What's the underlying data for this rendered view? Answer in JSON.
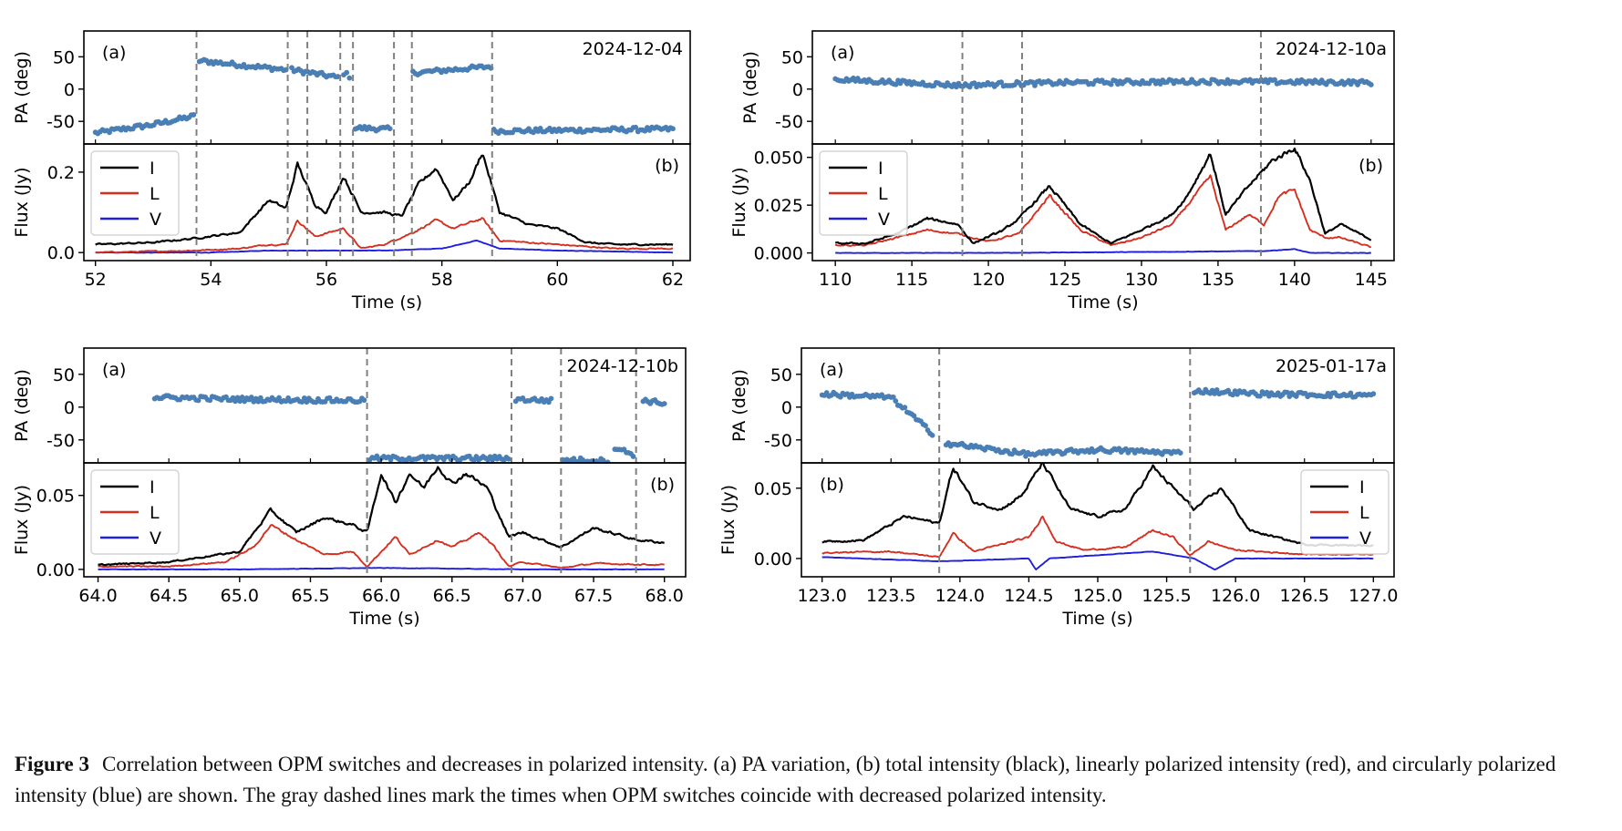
{
  "figure": {
    "caption_label": "Figure 3",
    "caption_text": "Correlation between OPM switches and decreases in polarized intensity. (a) PA variation, (b) total intensity (black), linearly polarized intensity (red), and circularly polarized intensity (blue) are shown. The gray dashed lines mark the times when OPM switches coincide with decreased polarized intensity."
  },
  "colors": {
    "I": "#000000",
    "L": "#d62e1f",
    "V": "#1f1fe0",
    "PA": "#4a7fb5",
    "switch": "#808080"
  },
  "chart_data": [
    {
      "type": "line",
      "title": "2024-12-04",
      "legend_position": "top-left",
      "pa_panel": {
        "label": "(a)",
        "ylabel": "PA (deg)",
        "ylim": [
          -85,
          90
        ],
        "yticks": [
          50,
          0,
          -50
        ],
        "segments": [
          {
            "x": [
              52.0,
              53.0,
              53.7
            ],
            "y": [
              -68,
              -55,
              -42
            ]
          },
          {
            "x": [
              53.8,
              55.3
            ],
            "y": [
              44,
              30
            ]
          },
          {
            "x": [
              55.4,
              56.2
            ],
            "y": [
              30,
              18
            ]
          },
          {
            "x": [
              56.3,
              56.4
            ],
            "y": [
              25,
              20
            ]
          },
          {
            "x": [
              56.5,
              57.1
            ],
            "y": [
              -60,
              -62
            ]
          },
          {
            "x": [
              57.5,
              58.85
            ],
            "y": [
              25,
              35
            ]
          },
          {
            "x": [
              58.9,
              62.0
            ],
            "y": [
              -65,
              -62
            ]
          }
        ]
      },
      "flux_panel": {
        "label": "(b)",
        "ylabel": "Flux (Jy)",
        "ylim": [
          -0.02,
          0.27
        ],
        "yticks": [
          0.0,
          0.2
        ],
        "ytick_labels": [
          "0.0",
          "0.2"
        ]
      },
      "xlabel": "Time (s)",
      "xlim": [
        51.8,
        62.3
      ],
      "xticks": [
        52,
        54,
        56,
        58,
        60,
        62
      ],
      "xtick_labels": [
        "52",
        "54",
        "56",
        "58",
        "60",
        "62"
      ],
      "switches": [
        53.75,
        55.33,
        55.67,
        56.24,
        56.46,
        57.17,
        57.48,
        58.87
      ],
      "series": [
        {
          "name": "I",
          "x": [
            52,
            53,
            53.7,
            54.5,
            55.0,
            55.3,
            55.5,
            55.8,
            56.0,
            56.3,
            56.6,
            57.0,
            57.3,
            57.6,
            57.9,
            58.2,
            58.5,
            58.7,
            59.0,
            59.5,
            60.0,
            60.5,
            61.0,
            62.0
          ],
          "values": [
            0.02,
            0.025,
            0.035,
            0.05,
            0.13,
            0.11,
            0.22,
            0.12,
            0.1,
            0.19,
            0.1,
            0.1,
            0.09,
            0.17,
            0.21,
            0.13,
            0.18,
            0.25,
            0.1,
            0.07,
            0.06,
            0.025,
            0.02,
            0.02
          ]
        },
        {
          "name": "L",
          "x": [
            52,
            53.7,
            54.5,
            55.0,
            55.3,
            55.5,
            55.8,
            56.3,
            56.6,
            57.0,
            57.5,
            57.9,
            58.2,
            58.7,
            59.0,
            60.0,
            61.0,
            62.0
          ],
          "values": [
            0.0,
            0.005,
            0.01,
            0.02,
            0.02,
            0.08,
            0.04,
            0.06,
            0.01,
            0.02,
            0.05,
            0.08,
            0.06,
            0.085,
            0.03,
            0.02,
            0.01,
            0.01
          ]
        },
        {
          "name": "V",
          "x": [
            52,
            54,
            55,
            56,
            57,
            58,
            58.6,
            59,
            60,
            62
          ],
          "values": [
            0.0,
            0.0,
            0.005,
            0.005,
            0.005,
            0.01,
            0.03,
            0.01,
            0.005,
            0.0
          ]
        }
      ]
    },
    {
      "type": "line",
      "title": "2024-12-10a",
      "legend_position": "top-left",
      "pa_panel": {
        "label": "(a)",
        "ylabel": "PA (deg)",
        "ylim": [
          -85,
          90
        ],
        "yticks": [
          50,
          0,
          -50
        ],
        "segments": [
          {
            "x": [
              110.0,
              118.0,
              125.0,
              135.0,
              145.0
            ],
            "y": [
              15,
              6,
              10,
              12,
              10
            ]
          }
        ]
      },
      "flux_panel": {
        "label": "(b)",
        "ylabel": "Flux (Jy)",
        "ylim": [
          -0.004,
          0.057
        ],
        "yticks": [
          0.0,
          0.025,
          0.05
        ],
        "ytick_labels": [
          "0.000",
          "0.025",
          "0.050"
        ]
      },
      "xlabel": "Time (s)",
      "xlim": [
        108.5,
        146.5
      ],
      "xticks": [
        110,
        115,
        120,
        125,
        130,
        135,
        140,
        145
      ],
      "xtick_labels": [
        "110",
        "115",
        "120",
        "125",
        "130",
        "135",
        "140",
        "145"
      ],
      "switches": [
        118.3,
        122.2,
        137.8
      ],
      "series": [
        {
          "name": "I",
          "x": [
            110,
            112,
            114,
            116,
            118,
            119,
            121,
            122,
            124,
            126,
            128,
            130,
            132,
            133,
            134.5,
            135.5,
            137,
            138.5,
            140,
            141,
            142,
            143,
            145
          ],
          "values": [
            0.005,
            0.005,
            0.01,
            0.018,
            0.015,
            0.005,
            0.012,
            0.018,
            0.035,
            0.015,
            0.005,
            0.012,
            0.02,
            0.03,
            0.052,
            0.02,
            0.035,
            0.048,
            0.055,
            0.038,
            0.01,
            0.015,
            0.007
          ]
        },
        {
          "name": "L",
          "x": [
            110,
            112,
            114,
            116,
            118,
            120,
            122,
            124,
            126,
            128,
            130,
            132,
            134.5,
            135.5,
            137,
            138,
            139,
            140,
            141,
            142,
            143,
            145
          ],
          "values": [
            0.004,
            0.004,
            0.008,
            0.012,
            0.01,
            0.006,
            0.01,
            0.03,
            0.012,
            0.004,
            0.008,
            0.015,
            0.04,
            0.012,
            0.02,
            0.015,
            0.03,
            0.033,
            0.012,
            0.008,
            0.008,
            0.003
          ]
        },
        {
          "name": "V",
          "x": [
            110,
            120,
            130,
            138,
            140,
            141,
            145
          ],
          "values": [
            0.0,
            0.0,
            0.0005,
            0.001,
            0.002,
            0.0,
            0.0
          ]
        }
      ]
    },
    {
      "type": "line",
      "title": "2024-12-10b",
      "legend_position": "top-left",
      "pa_panel": {
        "label": "(a)",
        "ylabel": "PA (deg)",
        "ylim": [
          -85,
          90
        ],
        "yticks": [
          50,
          0,
          -50
        ],
        "segments": [
          {
            "x": [
              64.4,
              65.0,
              65.88
            ],
            "y": [
              15,
              12,
              10
            ]
          },
          {
            "x": [
              65.92,
              66.9
            ],
            "y": [
              -78,
              -78
            ]
          },
          {
            "x": [
              66.95,
              67.2
            ],
            "y": [
              12,
              10
            ]
          },
          {
            "x": [
              67.28,
              67.6
            ],
            "y": [
              -80,
              -82
            ]
          },
          {
            "x": [
              67.65,
              67.78
            ],
            "y": [
              -62,
              -72
            ]
          },
          {
            "x": [
              67.85,
              68.0
            ],
            "y": [
              10,
              6
            ]
          }
        ]
      },
      "flux_panel": {
        "label": "(b)",
        "ylabel": "Flux (Jy)",
        "ylim": [
          -0.005,
          0.072
        ],
        "yticks": [
          0.0,
          0.05
        ],
        "ytick_labels": [
          "0.00",
          "0.05"
        ]
      },
      "xlabel": "Time (s)",
      "xlim": [
        63.9,
        68.15
      ],
      "xticks": [
        64.0,
        64.5,
        65.0,
        65.5,
        66.0,
        66.5,
        67.0,
        67.5,
        68.0
      ],
      "xtick_labels": [
        "64.0",
        "64.5",
        "65.0",
        "65.5",
        "66.0",
        "66.5",
        "67.0",
        "67.5",
        "68.0"
      ],
      "switches": [
        65.9,
        66.92,
        67.27,
        67.8
      ],
      "series": [
        {
          "name": "I",
          "x": [
            64.0,
            64.5,
            65.0,
            65.22,
            65.4,
            65.6,
            65.8,
            65.9,
            66.0,
            66.1,
            66.2,
            66.3,
            66.4,
            66.5,
            66.6,
            66.75,
            66.9,
            67.0,
            67.27,
            67.5,
            67.8,
            68.0
          ],
          "values": [
            0.003,
            0.005,
            0.012,
            0.04,
            0.025,
            0.035,
            0.03,
            0.025,
            0.065,
            0.045,
            0.065,
            0.055,
            0.07,
            0.058,
            0.065,
            0.055,
            0.022,
            0.025,
            0.015,
            0.028,
            0.02,
            0.018
          ]
        },
        {
          "name": "L",
          "x": [
            64.0,
            64.5,
            64.9,
            65.1,
            65.22,
            65.4,
            65.6,
            65.8,
            65.9,
            66.1,
            66.2,
            66.4,
            66.5,
            66.7,
            66.8,
            66.9,
            67.0,
            67.27,
            67.5,
            68.0
          ],
          "values": [
            0.002,
            0.002,
            0.005,
            0.015,
            0.03,
            0.02,
            0.01,
            0.012,
            0.002,
            0.022,
            0.01,
            0.02,
            0.015,
            0.025,
            0.015,
            0.002,
            0.005,
            0.001,
            0.004,
            0.003
          ]
        },
        {
          "name": "V",
          "x": [
            64.0,
            65.0,
            66.0,
            67.0,
            68.0
          ],
          "values": [
            0.0,
            0.0,
            0.001,
            0.0,
            0.0
          ]
        }
      ]
    },
    {
      "type": "line",
      "title": "2025-01-17a",
      "legend_position": "top-right",
      "pa_panel": {
        "label": "(a)",
        "ylabel": "PA (deg)",
        "ylim": [
          -85,
          90
        ],
        "yticks": [
          50,
          0,
          -50
        ],
        "segments": [
          {
            "x": [
              123.0,
              123.5,
              123.8
            ],
            "y": [
              20,
              15,
              -40
            ]
          },
          {
            "x": [
              123.9,
              124.5,
              125.0,
              125.6
            ],
            "y": [
              -55,
              -72,
              -65,
              -70
            ]
          },
          {
            "x": [
              125.7,
              126.2,
              127.0
            ],
            "y": [
              25,
              20,
              18
            ]
          }
        ]
      },
      "flux_panel": {
        "label": "(b)",
        "ylabel": "Flux (Jy)",
        "ylim": [
          -0.013,
          0.068
        ],
        "yticks": [
          0.0,
          0.05
        ],
        "ytick_labels": [
          "0.00",
          "0.05"
        ]
      },
      "xlabel": "Time (s)",
      "xlim": [
        122.85,
        127.15
      ],
      "xticks": [
        123.0,
        123.5,
        124.0,
        124.5,
        125.0,
        125.5,
        126.0,
        126.5,
        127.0
      ],
      "xtick_labels": [
        "123.0",
        "123.5",
        "124.0",
        "124.5",
        "125.0",
        "125.5",
        "126.0",
        "126.5",
        "127.0"
      ],
      "switches": [
        123.85,
        125.67
      ],
      "series": [
        {
          "name": "I",
          "x": [
            123.0,
            123.3,
            123.6,
            123.85,
            123.95,
            124.1,
            124.3,
            124.45,
            124.6,
            124.8,
            125.0,
            125.2,
            125.4,
            125.6,
            125.7,
            125.9,
            126.1,
            126.5,
            127.0
          ],
          "values": [
            0.012,
            0.013,
            0.03,
            0.025,
            0.065,
            0.04,
            0.035,
            0.045,
            0.068,
            0.035,
            0.03,
            0.035,
            0.065,
            0.045,
            0.035,
            0.05,
            0.02,
            0.01,
            0.009
          ]
        },
        {
          "name": "L",
          "x": [
            123.0,
            123.5,
            123.85,
            123.95,
            124.1,
            124.3,
            124.5,
            124.6,
            124.7,
            124.9,
            125.2,
            125.4,
            125.55,
            125.67,
            125.8,
            126.0,
            126.5,
            127.0
          ],
          "values": [
            0.004,
            0.005,
            0.001,
            0.018,
            0.005,
            0.01,
            0.015,
            0.03,
            0.012,
            0.006,
            0.008,
            0.02,
            0.015,
            0.002,
            0.012,
            0.006,
            0.003,
            0.003
          ]
        },
        {
          "name": "V",
          "x": [
            123.0,
            123.85,
            124.5,
            124.55,
            124.65,
            125.4,
            125.7,
            125.85,
            126.0,
            127.0
          ],
          "values": [
            0.001,
            -0.002,
            0.0,
            -0.008,
            0.0,
            0.005,
            0.0,
            -0.008,
            0.0,
            0.0
          ]
        }
      ]
    }
  ]
}
